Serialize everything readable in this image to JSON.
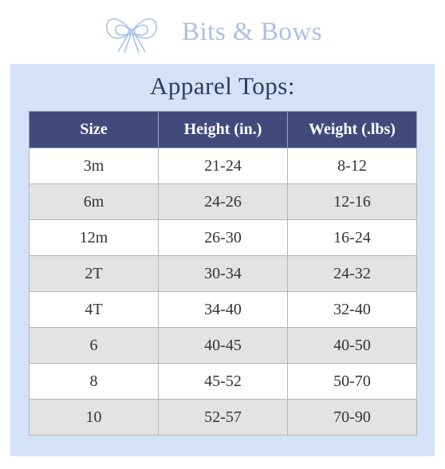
{
  "brand": {
    "name": "Bits & Bows",
    "logo_icon": "bow-outline-icon"
  },
  "title": "Apparel Tops:",
  "table": {
    "headers": [
      "Size",
      "Height (in.)",
      "Weight (.lbs)"
    ],
    "rows": [
      [
        "3m",
        "21-24",
        "8-12"
      ],
      [
        "6m",
        "24-26",
        "12-16"
      ],
      [
        "12m",
        "26-30",
        "16-24"
      ],
      [
        "2T",
        "30-34",
        "24-32"
      ],
      [
        "4T",
        "34-40",
        "32-40"
      ],
      [
        "6",
        "40-45",
        "40-50"
      ],
      [
        "8",
        "45-52",
        "50-70"
      ],
      [
        "10",
        "52-57",
        "70-90"
      ]
    ]
  },
  "colors": {
    "brand_text": "#a9c1e6",
    "panel_bg": "#d3e2f7",
    "title_text": "#2c3b63",
    "header_bg": "#414a7b",
    "row_alt_bg": "#e3e3e3"
  }
}
